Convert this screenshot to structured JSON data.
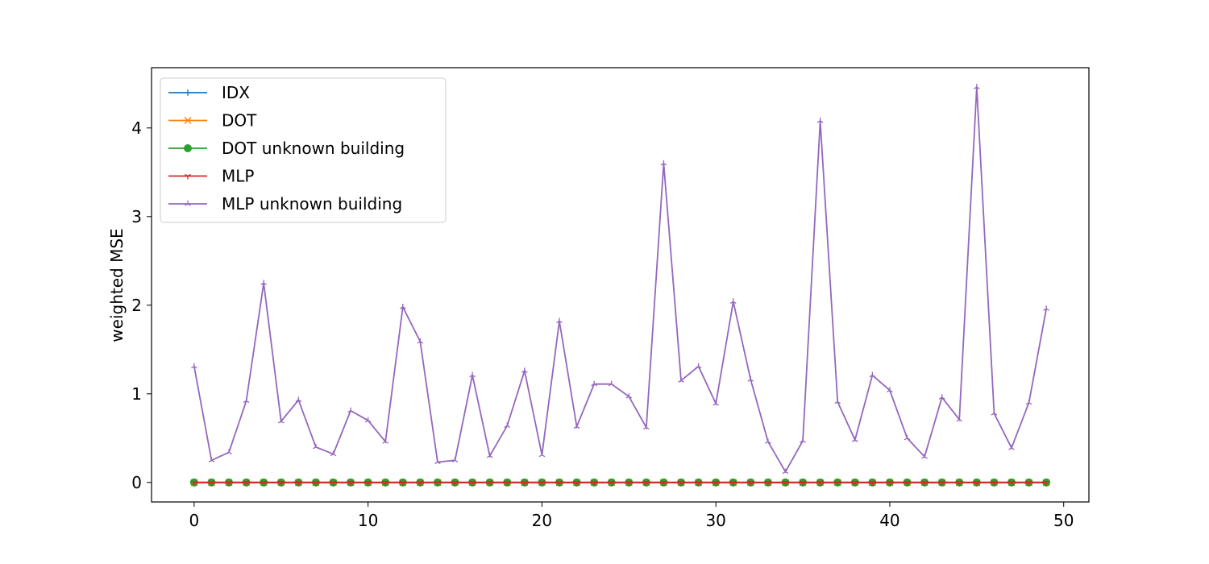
{
  "chart_data": {
    "type": "line",
    "title": "",
    "xlabel": "",
    "ylabel": "weighted MSE",
    "xlim": [
      -2.45,
      51.45
    ],
    "ylim": [
      -0.22,
      4.68
    ],
    "xticks": [
      0,
      10,
      20,
      30,
      40,
      50
    ],
    "yticks": [
      0,
      1,
      2,
      3,
      4
    ],
    "grid": false,
    "legend_position": "upper-left",
    "x": [
      0,
      1,
      2,
      3,
      4,
      5,
      6,
      7,
      8,
      9,
      10,
      11,
      12,
      13,
      14,
      15,
      16,
      17,
      18,
      19,
      20,
      21,
      22,
      23,
      24,
      25,
      26,
      27,
      28,
      29,
      30,
      31,
      32,
      33,
      34,
      35,
      36,
      37,
      38,
      39,
      40,
      41,
      42,
      43,
      44,
      45,
      46,
      47,
      48,
      49
    ],
    "series": [
      {
        "name": "IDX",
        "color": "#1f77b4",
        "marker": "plus",
        "values": [
          0,
          0,
          0,
          0,
          0,
          0,
          0,
          0,
          0,
          0,
          0,
          0,
          0,
          0,
          0,
          0,
          0,
          0,
          0,
          0,
          0,
          0,
          0,
          0,
          0,
          0,
          0,
          0,
          0,
          0,
          0,
          0,
          0,
          0,
          0,
          0,
          0,
          0,
          0,
          0,
          0,
          0,
          0,
          0,
          0,
          0,
          0,
          0,
          0,
          0
        ]
      },
      {
        "name": "DOT",
        "color": "#ff7f0e",
        "marker": "x",
        "values": [
          0,
          0,
          0,
          0,
          0,
          0,
          0,
          0,
          0,
          0,
          0,
          0,
          0,
          0,
          0,
          0,
          0,
          0,
          0,
          0,
          0,
          0,
          0,
          0,
          0,
          0,
          0,
          0,
          0,
          0,
          0,
          0,
          0,
          0,
          0,
          0,
          0,
          0,
          0,
          0,
          0,
          0,
          0,
          0,
          0,
          0,
          0,
          0,
          0,
          0
        ]
      },
      {
        "name": "DOT unknown building",
        "color": "#2ca02c",
        "marker": "circle",
        "values": [
          0,
          0,
          0,
          0,
          0,
          0,
          0,
          0,
          0,
          0,
          0,
          0,
          0,
          0,
          0,
          0,
          0,
          0,
          0,
          0,
          0,
          0,
          0,
          0,
          0,
          0,
          0,
          0,
          0,
          0,
          0,
          0,
          0,
          0,
          0,
          0,
          0,
          0,
          0,
          0,
          0,
          0,
          0,
          0,
          0,
          0,
          0,
          0,
          0,
          0
        ]
      },
      {
        "name": "MLP",
        "color": "#d62728",
        "marker": "tri-down",
        "values": [
          0,
          0,
          0,
          0,
          0,
          0,
          0,
          0,
          0,
          0,
          0,
          0,
          0,
          0,
          0,
          0,
          0,
          0,
          0,
          0,
          0,
          0,
          0,
          0,
          0,
          0,
          0,
          0,
          0,
          0,
          0,
          0,
          0,
          0,
          0,
          0,
          0,
          0,
          0,
          0,
          0,
          0,
          0,
          0,
          0,
          0,
          0,
          0,
          0,
          0
        ]
      },
      {
        "name": "MLP unknown building",
        "color": "#9467bd",
        "marker": "tri-up",
        "values": [
          1.31,
          0.25,
          0.34,
          0.92,
          2.25,
          0.69,
          0.93,
          0.4,
          0.32,
          0.81,
          0.7,
          0.46,
          1.98,
          1.59,
          0.23,
          0.25,
          1.21,
          0.3,
          0.64,
          1.26,
          0.31,
          1.82,
          0.63,
          1.11,
          1.11,
          0.97,
          0.62,
          3.6,
          1.15,
          1.31,
          0.89,
          2.04,
          1.16,
          0.46,
          0.12,
          0.47,
          4.08,
          0.91,
          0.48,
          1.21,
          1.04,
          0.5,
          0.29,
          0.96,
          0.71,
          4.46,
          0.78,
          0.39,
          0.9,
          1.96
        ]
      }
    ]
  }
}
